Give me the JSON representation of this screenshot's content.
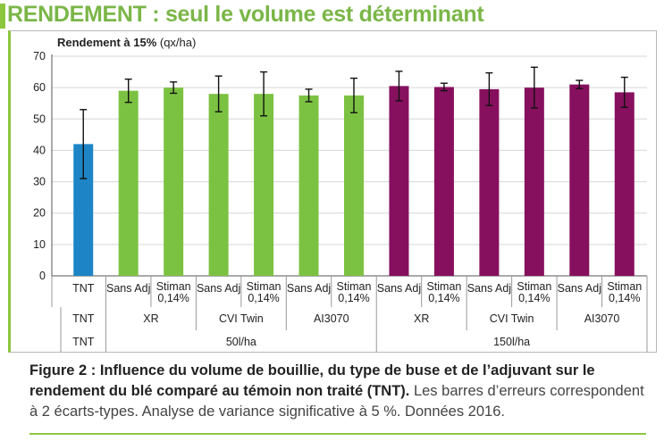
{
  "header": {
    "title": "RENDEMENT : seul le volume est déterminant"
  },
  "chart_data": {
    "type": "bar",
    "ylabel_bold": "Rendement à 15%",
    "ylabel_unit": " (qx/ha)",
    "ylim": [
      0,
      70
    ],
    "yticks": [
      "0",
      "10",
      "20",
      "30",
      "40",
      "50",
      "60",
      "70"
    ],
    "grid": true,
    "error_bars": "2 écarts-types",
    "bars": [
      {
        "label": "TNT",
        "value": 42,
        "err": 11,
        "color": "#1d85c5"
      },
      {
        "label": "Sans Adj",
        "value": 59,
        "err": 3.7,
        "color": "#7cc242"
      },
      {
        "label": "Stiman 0,14%",
        "value": 60,
        "err": 1.8,
        "color": "#7cc242"
      },
      {
        "label": "Sans Adj",
        "value": 58,
        "err": 5.7,
        "color": "#7cc242"
      },
      {
        "label": "Stiman 0,14%",
        "value": 58,
        "err": 7,
        "color": "#7cc242"
      },
      {
        "label": "Sans Adj",
        "value": 57.5,
        "err": 2,
        "color": "#7cc242"
      },
      {
        "label": "Stiman 0,14%",
        "value": 57.5,
        "err": 5.5,
        "color": "#7cc242"
      },
      {
        "label": "Sans Adj",
        "value": 60.5,
        "err": 4.7,
        "color": "#86105e"
      },
      {
        "label": "Stiman 0,14%",
        "value": 60.2,
        "err": 1.2,
        "color": "#86105e"
      },
      {
        "label": "Sans Adj",
        "value": 59.5,
        "err": 5.2,
        "color": "#86105e"
      },
      {
        "label": "Stiman 0,14%",
        "value": 60,
        "err": 6.5,
        "color": "#86105e"
      },
      {
        "label": "Sans Adj",
        "value": 61,
        "err": 1.3,
        "color": "#86105e"
      },
      {
        "label": "Stiman 0,14%",
        "value": 58.5,
        "err": 4.8,
        "color": "#86105e"
      }
    ],
    "row1": [
      "TNT",
      "Sans Adj",
      "Stiman\n0,14%",
      "Sans Adj",
      "Stiman\n0,14%",
      "Sans Adj",
      "Stiman\n0,14%",
      "Sans Adj",
      "Stiman\n0,14%",
      "Sans Adj",
      "Stiman\n0,14%",
      "Sans Adj",
      "Stiman\n0,14%"
    ],
    "row2": [
      "TNT",
      "XR",
      "CVI Twin",
      "AI3070",
      "XR",
      "CVI Twin",
      "AI3070"
    ],
    "row3": [
      "TNT",
      "50l/ha",
      "150l/ha"
    ]
  },
  "caption": {
    "strong": "Figure 2 : Influence du volume de bouillie, du type de buse et de l’adjuvant sur le rendement du blé comparé au témoin non traité (TNT).",
    "rest": " Les barres d’erreurs correspondent à 2 écarts-types. Analyse de variance significative à 5 %. Données 2016."
  }
}
